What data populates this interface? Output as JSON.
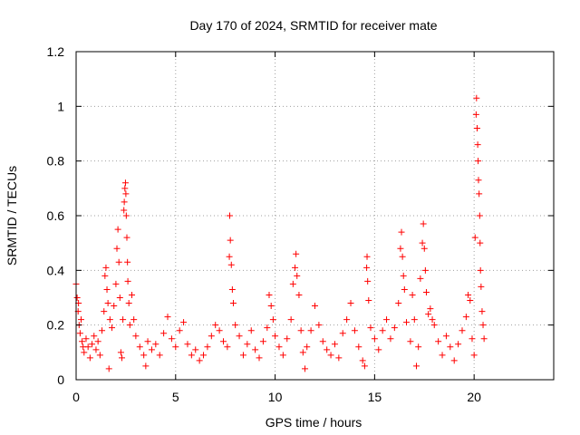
{
  "chart_data": {
    "type": "scatter",
    "title": "Day 170 of 2024, SRMTID for receiver mate",
    "xlabel": "GPS time / hours",
    "ylabel": "SRMTID / TECUs",
    "xlim": [
      0,
      24
    ],
    "ylim": [
      0,
      1.2
    ],
    "xticks": [
      0,
      5,
      10,
      15,
      20
    ],
    "yticks": [
      0,
      0.2,
      0.4,
      0.6,
      0.8,
      1.0,
      1.2
    ],
    "xtick_labels": [
      "0",
      "5",
      "10",
      "15",
      "20"
    ],
    "ytick_labels": [
      "0",
      "0.2",
      "0.4",
      "0.6",
      "0.8",
      "1",
      "1.2"
    ],
    "grid": true,
    "marker": "+",
    "color": "#ff0000",
    "series": [
      {
        "name": "SRMTID",
        "points": [
          [
            0.0,
            0.35
          ],
          [
            0.05,
            0.3
          ],
          [
            0.1,
            0.25
          ],
          [
            0.12,
            0.28
          ],
          [
            0.15,
            0.2
          ],
          [
            0.2,
            0.17
          ],
          [
            0.25,
            0.22
          ],
          [
            0.3,
            0.14
          ],
          [
            0.35,
            0.12
          ],
          [
            0.4,
            0.1
          ],
          [
            0.5,
            0.15
          ],
          [
            0.6,
            0.12
          ],
          [
            0.7,
            0.08
          ],
          [
            0.8,
            0.13
          ],
          [
            0.9,
            0.16
          ],
          [
            1.0,
            0.11
          ],
          [
            1.1,
            0.14
          ],
          [
            1.2,
            0.09
          ],
          [
            1.3,
            0.18
          ],
          [
            1.4,
            0.25
          ],
          [
            1.45,
            0.38
          ],
          [
            1.5,
            0.41
          ],
          [
            1.55,
            0.33
          ],
          [
            1.6,
            0.28
          ],
          [
            1.65,
            0.04
          ],
          [
            1.7,
            0.22
          ],
          [
            1.8,
            0.19
          ],
          [
            1.9,
            0.27
          ],
          [
            2.0,
            0.35
          ],
          [
            2.05,
            0.48
          ],
          [
            2.1,
            0.55
          ],
          [
            2.15,
            0.43
          ],
          [
            2.2,
            0.3
          ],
          [
            2.25,
            0.1
          ],
          [
            2.3,
            0.08
          ],
          [
            2.35,
            0.22
          ],
          [
            2.4,
            0.62
          ],
          [
            2.42,
            0.65
          ],
          [
            2.45,
            0.7
          ],
          [
            2.48,
            0.72
          ],
          [
            2.5,
            0.68
          ],
          [
            2.52,
            0.6
          ],
          [
            2.55,
            0.52
          ],
          [
            2.58,
            0.43
          ],
          [
            2.6,
            0.36
          ],
          [
            2.65,
            0.28
          ],
          [
            2.7,
            0.2
          ],
          [
            2.8,
            0.31
          ],
          [
            2.9,
            0.22
          ],
          [
            3.0,
            0.16
          ],
          [
            3.2,
            0.12
          ],
          [
            3.4,
            0.09
          ],
          [
            3.5,
            0.05
          ],
          [
            3.6,
            0.14
          ],
          [
            3.8,
            0.11
          ],
          [
            4.0,
            0.13
          ],
          [
            4.2,
            0.09
          ],
          [
            4.4,
            0.17
          ],
          [
            4.6,
            0.23
          ],
          [
            4.8,
            0.15
          ],
          [
            5.0,
            0.12
          ],
          [
            5.2,
            0.18
          ],
          [
            5.4,
            0.21
          ],
          [
            5.6,
            0.13
          ],
          [
            5.8,
            0.09
          ],
          [
            6.0,
            0.11
          ],
          [
            6.2,
            0.07
          ],
          [
            6.4,
            0.09
          ],
          [
            6.6,
            0.12
          ],
          [
            6.8,
            0.16
          ],
          [
            7.0,
            0.2
          ],
          [
            7.2,
            0.18
          ],
          [
            7.4,
            0.14
          ],
          [
            7.6,
            0.12
          ],
          [
            7.7,
            0.45
          ],
          [
            7.72,
            0.6
          ],
          [
            7.75,
            0.51
          ],
          [
            7.8,
            0.42
          ],
          [
            7.85,
            0.33
          ],
          [
            7.9,
            0.28
          ],
          [
            8.0,
            0.2
          ],
          [
            8.2,
            0.16
          ],
          [
            8.4,
            0.09
          ],
          [
            8.6,
            0.13
          ],
          [
            8.8,
            0.18
          ],
          [
            9.0,
            0.11
          ],
          [
            9.2,
            0.08
          ],
          [
            9.4,
            0.14
          ],
          [
            9.6,
            0.19
          ],
          [
            9.7,
            0.31
          ],
          [
            9.8,
            0.27
          ],
          [
            9.9,
            0.22
          ],
          [
            10.0,
            0.16
          ],
          [
            10.2,
            0.12
          ],
          [
            10.4,
            0.09
          ],
          [
            10.6,
            0.15
          ],
          [
            10.8,
            0.22
          ],
          [
            10.9,
            0.35
          ],
          [
            11.0,
            0.41
          ],
          [
            11.05,
            0.46
          ],
          [
            11.1,
            0.38
          ],
          [
            11.2,
            0.31
          ],
          [
            11.3,
            0.18
          ],
          [
            11.4,
            0.1
          ],
          [
            11.5,
            0.04
          ],
          [
            11.6,
            0.12
          ],
          [
            11.8,
            0.18
          ],
          [
            12.0,
            0.27
          ],
          [
            12.2,
            0.2
          ],
          [
            12.4,
            0.14
          ],
          [
            12.6,
            0.11
          ],
          [
            12.8,
            0.09
          ],
          [
            13.0,
            0.13
          ],
          [
            13.2,
            0.08
          ],
          [
            13.4,
            0.17
          ],
          [
            13.6,
            0.22
          ],
          [
            13.8,
            0.28
          ],
          [
            14.0,
            0.18
          ],
          [
            14.2,
            0.12
          ],
          [
            14.4,
            0.07
          ],
          [
            14.5,
            0.05
          ],
          [
            14.6,
            0.41
          ],
          [
            14.62,
            0.45
          ],
          [
            14.65,
            0.36
          ],
          [
            14.7,
            0.29
          ],
          [
            14.8,
            0.19
          ],
          [
            15.0,
            0.15
          ],
          [
            15.2,
            0.11
          ],
          [
            15.4,
            0.18
          ],
          [
            15.6,
            0.22
          ],
          [
            15.8,
            0.15
          ],
          [
            16.0,
            0.19
          ],
          [
            16.2,
            0.28
          ],
          [
            16.3,
            0.48
          ],
          [
            16.35,
            0.54
          ],
          [
            16.4,
            0.45
          ],
          [
            16.45,
            0.38
          ],
          [
            16.5,
            0.33
          ],
          [
            16.6,
            0.21
          ],
          [
            16.8,
            0.14
          ],
          [
            16.9,
            0.31
          ],
          [
            17.0,
            0.22
          ],
          [
            17.1,
            0.05
          ],
          [
            17.2,
            0.12
          ],
          [
            17.3,
            0.37
          ],
          [
            17.4,
            0.5
          ],
          [
            17.45,
            0.57
          ],
          [
            17.5,
            0.48
          ],
          [
            17.55,
            0.4
          ],
          [
            17.6,
            0.32
          ],
          [
            17.7,
            0.24
          ],
          [
            17.8,
            0.26
          ],
          [
            17.9,
            0.22
          ],
          [
            18.0,
            0.2
          ],
          [
            18.2,
            0.14
          ],
          [
            18.4,
            0.09
          ],
          [
            18.6,
            0.16
          ],
          [
            18.8,
            0.12
          ],
          [
            19.0,
            0.07
          ],
          [
            19.2,
            0.13
          ],
          [
            19.4,
            0.18
          ],
          [
            19.6,
            0.23
          ],
          [
            19.7,
            0.31
          ],
          [
            19.8,
            0.29
          ],
          [
            19.9,
            0.15
          ],
          [
            20.0,
            0.09
          ],
          [
            20.05,
            0.52
          ],
          [
            20.1,
            0.97
          ],
          [
            20.12,
            1.03
          ],
          [
            20.15,
            0.92
          ],
          [
            20.18,
            0.86
          ],
          [
            20.2,
            0.8
          ],
          [
            20.22,
            0.73
          ],
          [
            20.25,
            0.68
          ],
          [
            20.28,
            0.6
          ],
          [
            20.3,
            0.5
          ],
          [
            20.32,
            0.4
          ],
          [
            20.35,
            0.34
          ],
          [
            20.4,
            0.25
          ],
          [
            20.45,
            0.2
          ],
          [
            20.5,
            0.15
          ]
        ]
      }
    ]
  }
}
